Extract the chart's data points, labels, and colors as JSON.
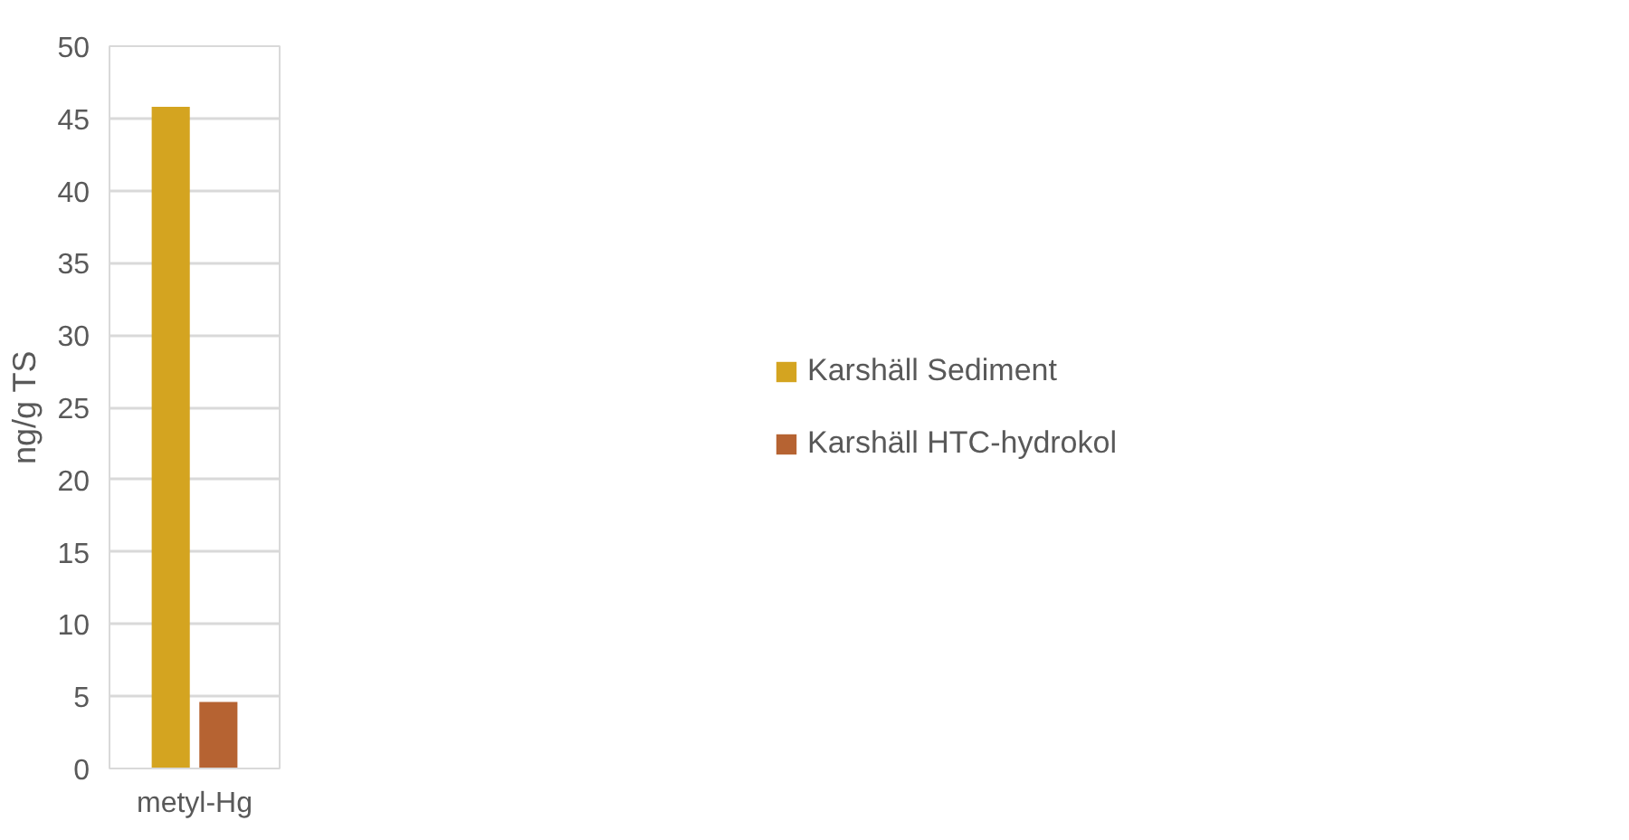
{
  "chart_data": {
    "type": "bar",
    "ylabel": "ng/g TS",
    "categories": [
      "metyl-Hg"
    ],
    "series": [
      {
        "name": "Karshäll Sediment",
        "color": "#d4a420",
        "values": [
          45.8
        ]
      },
      {
        "name": "Karshäll HTC-hydrokol",
        "color": "#b66332",
        "values": [
          4.6
        ]
      }
    ],
    "ylim": [
      0,
      50
    ],
    "yticks": [
      0,
      5,
      10,
      15,
      20,
      25,
      30,
      35,
      40,
      45,
      50
    ],
    "grid": "y",
    "legend": "right"
  }
}
